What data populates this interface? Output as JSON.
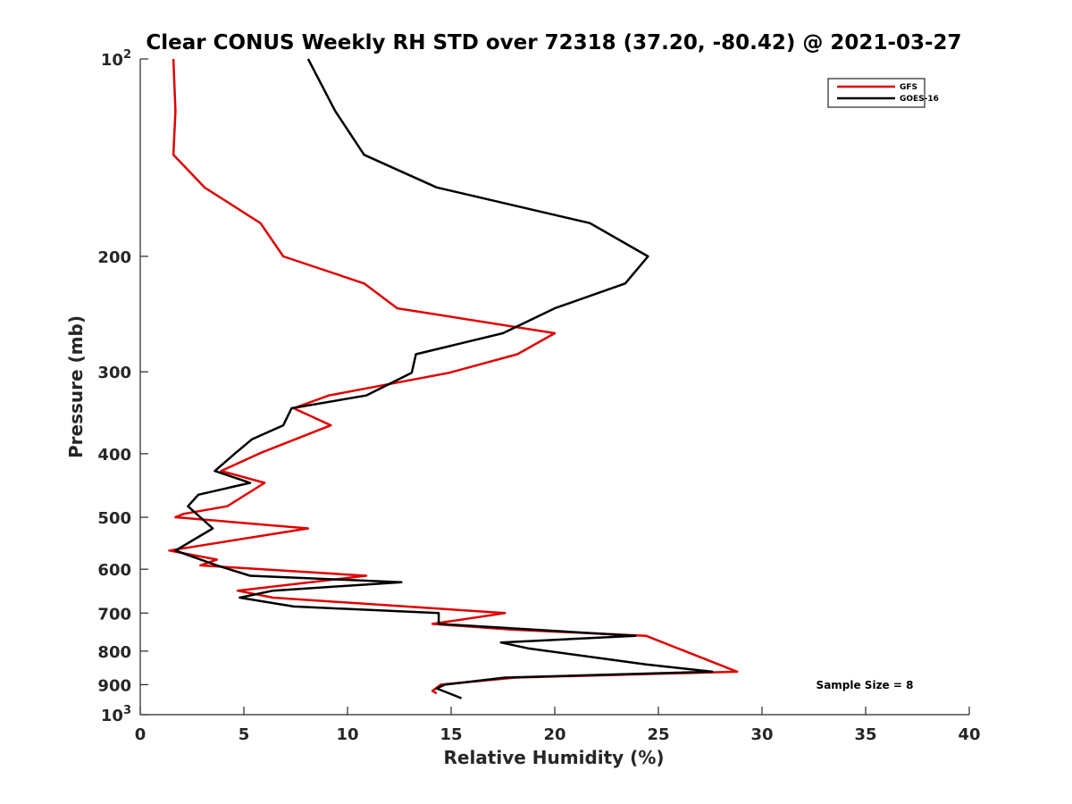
{
  "chart_data": {
    "type": "line",
    "title": "Clear CONUS Weekly RH STD over 72318 (37.20, -80.42) @ 2021-03-27",
    "xlabel": "Relative Humidity (%)",
    "ylabel": "Pressure (mb)",
    "xlim": [
      0,
      40
    ],
    "ylim": [
      100,
      1000
    ],
    "y_scale": "log",
    "y_reversed": true,
    "grid": false,
    "legend_position": "top-right",
    "x_ticks": [
      0,
      5,
      10,
      15,
      20,
      25,
      30,
      35,
      40
    ],
    "x_tick_labels": [
      "0",
      "5",
      "10",
      "15",
      "20",
      "25",
      "30",
      "35",
      "40"
    ],
    "y_ticks": [
      100,
      200,
      300,
      400,
      500,
      600,
      700,
      800,
      900,
      1000
    ],
    "y_tick_labels": [
      {
        "base": "10",
        "exp": "2"
      },
      {
        "base": "200",
        "exp": ""
      },
      {
        "base": "300",
        "exp": ""
      },
      {
        "base": "400",
        "exp": ""
      },
      {
        "base": "500",
        "exp": ""
      },
      {
        "base": "600",
        "exp": ""
      },
      {
        "base": "700",
        "exp": ""
      },
      {
        "base": "800",
        "exp": ""
      },
      {
        "base": "900",
        "exp": ""
      },
      {
        "base": "10",
        "exp": "3"
      }
    ],
    "annotation": "Sample Size = 8",
    "series": [
      {
        "name": "GFS",
        "color": "#e00000",
        "x": [
          1.6,
          1.7,
          1.6,
          3.1,
          5.8,
          6.9,
          10.8,
          12.4,
          20.0,
          18.2,
          14.9,
          9.1,
          7.4,
          9.2,
          5.8,
          3.9,
          6.0,
          4.2,
          2.1,
          1.7,
          8.1,
          1.4,
          3.7,
          2.9,
          10.9,
          4.7,
          6.4,
          17.6,
          14.1,
          18.0,
          24.4,
          24.4,
          28.8,
          18.1,
          14.5,
          14.1,
          14.3
        ],
        "y": [
          100,
          120,
          140,
          157,
          178,
          200,
          220,
          240,
          262,
          282,
          301,
          326,
          341,
          362,
          399,
          425,
          443,
          481,
          494,
          500,
          520,
          562,
          580,
          592,
          614,
          647,
          663,
          700,
          727,
          742,
          758,
          758,
          860,
          878,
          900,
          920,
          928
        ]
      },
      {
        "name": "GOES-16",
        "color": "#000000",
        "x": [
          8.1,
          9.4,
          10.8,
          14.3,
          21.7,
          24.5,
          23.4,
          20.0,
          17.5,
          13.3,
          13.1,
          10.9,
          7.3,
          6.9,
          5.4,
          4.6,
          3.6,
          5.3,
          2.8,
          2.3,
          3.5,
          1.7,
          3.7,
          5.3,
          12.6,
          6.4,
          4.8,
          7.4,
          14.4,
          14.4,
          23.9,
          23.9,
          17.4,
          18.7,
          24.4,
          27.6,
          17.6,
          14.7,
          14.3,
          15.5
        ],
        "y": [
          100,
          120,
          140,
          157,
          178,
          200,
          220,
          240,
          262,
          282,
          301,
          326,
          341,
          362,
          380,
          399,
          425,
          443,
          462,
          481,
          520,
          562,
          592,
          614,
          628,
          647,
          663,
          684,
          700,
          727,
          758,
          758,
          776,
          792,
          838,
          860,
          878,
          900,
          912,
          944
        ]
      }
    ]
  }
}
